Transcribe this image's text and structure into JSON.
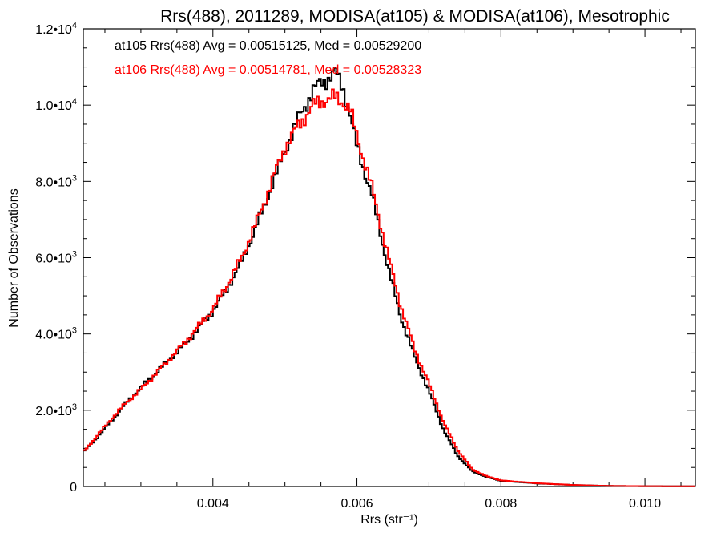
{
  "chart_data": {
    "type": "line",
    "title": "Rrs(488), 2011289, MODISA(at105) & MODISA(at106), Mesotrophic",
    "xlabel": "Rrs (str⁻¹)",
    "ylabel": "Number of Observations",
    "xlim": [
      0.0022,
      0.0107
    ],
    "ylim": [
      0,
      12000
    ],
    "x_ticks": [
      {
        "value": 0.004,
        "label": "0.004"
      },
      {
        "value": 0.006,
        "label": "0.006"
      },
      {
        "value": 0.008,
        "label": "0.008"
      },
      {
        "value": 0.01,
        "label": "0.010"
      }
    ],
    "y_ticks": [
      {
        "value": 0,
        "mant": "0",
        "exp": ""
      },
      {
        "value": 2000,
        "mant": "2.0•10",
        "exp": "3"
      },
      {
        "value": 4000,
        "mant": "4.0•10",
        "exp": "3"
      },
      {
        "value": 6000,
        "mant": "6.0•10",
        "exp": "3"
      },
      {
        "value": 8000,
        "mant": "8.0•10",
        "exp": "3"
      },
      {
        "value": 10000,
        "mant": "1.0•10",
        "exp": "4"
      },
      {
        "value": 12000,
        "mant": "1.2•10",
        "exp": "4"
      }
    ],
    "grid": false,
    "legend_position": "top-left",
    "series": [
      {
        "name": "at105",
        "color": "#000000",
        "legend": "at105 Rrs(488) Avg = 0.00515125, Med = 0.00529200",
        "points": [
          [
            0.0022,
            900
          ],
          [
            0.0024,
            1300
          ],
          [
            0.0026,
            1750
          ],
          [
            0.0028,
            2200
          ],
          [
            0.003,
            2600
          ],
          [
            0.0032,
            2950
          ],
          [
            0.0034,
            3350
          ],
          [
            0.0036,
            3700
          ],
          [
            0.0038,
            4150
          ],
          [
            0.004,
            4600
          ],
          [
            0.0042,
            5200
          ],
          [
            0.0044,
            5900
          ],
          [
            0.0046,
            6800
          ],
          [
            0.0048,
            7800
          ],
          [
            0.005,
            8800
          ],
          [
            0.0052,
            9700
          ],
          [
            0.0054,
            10400
          ],
          [
            0.0055,
            10600
          ],
          [
            0.0056,
            10700
          ],
          [
            0.0057,
            10850
          ],
          [
            0.0058,
            10500
          ],
          [
            0.0059,
            9800
          ],
          [
            0.006,
            8900
          ],
          [
            0.0062,
            7700
          ],
          [
            0.0064,
            6000
          ],
          [
            0.0066,
            4500
          ],
          [
            0.0068,
            3400
          ],
          [
            0.007,
            2500
          ],
          [
            0.0072,
            1500
          ],
          [
            0.0074,
            800
          ],
          [
            0.0076,
            400
          ],
          [
            0.0078,
            250
          ],
          [
            0.008,
            150
          ],
          [
            0.0085,
            80
          ],
          [
            0.009,
            40
          ],
          [
            0.0095,
            15
          ],
          [
            0.01,
            8
          ],
          [
            0.0107,
            4
          ]
        ]
      },
      {
        "name": "at106",
        "color": "#ff0000",
        "legend": "at106 Rrs(488) Avg = 0.00514781, Med = 0.00528323",
        "points": [
          [
            0.0022,
            900
          ],
          [
            0.0024,
            1350
          ],
          [
            0.0026,
            1800
          ],
          [
            0.0028,
            2200
          ],
          [
            0.003,
            2550
          ],
          [
            0.0032,
            2950
          ],
          [
            0.0034,
            3350
          ],
          [
            0.0036,
            3750
          ],
          [
            0.0038,
            4200
          ],
          [
            0.004,
            4650
          ],
          [
            0.0042,
            5300
          ],
          [
            0.0044,
            6000
          ],
          [
            0.0046,
            6900
          ],
          [
            0.0048,
            7900
          ],
          [
            0.005,
            8900
          ],
          [
            0.0052,
            9500
          ],
          [
            0.0054,
            10000
          ],
          [
            0.0055,
            10100
          ],
          [
            0.0056,
            10150
          ],
          [
            0.0057,
            10200
          ],
          [
            0.0058,
            10100
          ],
          [
            0.0059,
            9900
          ],
          [
            0.006,
            9200
          ],
          [
            0.0062,
            7900
          ],
          [
            0.0064,
            6300
          ],
          [
            0.0066,
            4800
          ],
          [
            0.0068,
            3600
          ],
          [
            0.007,
            2700
          ],
          [
            0.0072,
            1700
          ],
          [
            0.0074,
            950
          ],
          [
            0.0076,
            450
          ],
          [
            0.0078,
            270
          ],
          [
            0.008,
            160
          ],
          [
            0.0085,
            85
          ],
          [
            0.009,
            40
          ],
          [
            0.0095,
            15
          ],
          [
            0.01,
            8
          ],
          [
            0.0107,
            4
          ]
        ]
      }
    ]
  }
}
